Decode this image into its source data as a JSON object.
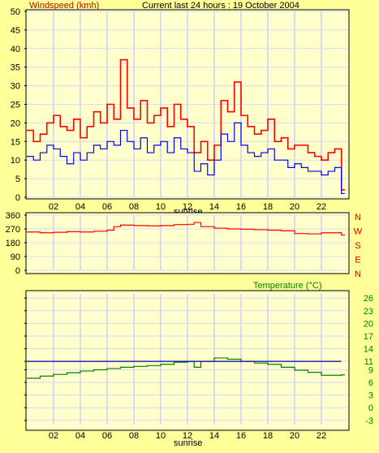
{
  "colors": {
    "background": "#ffff99",
    "plot_bg": "#ffffcc",
    "grid": "#d9d9f2",
    "gust": "#ff0000",
    "avg": "#0000ff",
    "direction": "#ff0000",
    "temperature": "#008000",
    "ref_line": "#0000aa",
    "text": "#000000",
    "direction_labels": "#cc0000",
    "temp_labels": "#008000"
  },
  "header": {
    "wind_title": "Windspeed (kmh)",
    "period_title": "Current last 24 hours : 19 October 2004"
  },
  "chart_data": [
    {
      "type": "line",
      "title": "Windspeed (kmh)",
      "x_ticks": [
        "02",
        "04",
        "06",
        "08",
        "10",
        "12",
        "14",
        "16",
        "18",
        "20",
        "22"
      ],
      "x_annotation": "sunrise",
      "y_ticks": [
        "0",
        "5",
        "10",
        "15",
        "20",
        "25",
        "30",
        "35",
        "40",
        "45",
        "50"
      ],
      "ylim": [
        0,
        50
      ],
      "xlim": [
        0,
        24
      ],
      "grid": true,
      "series": [
        {
          "color": "#ff0000",
          "x": [
            0,
            0.5,
            1,
            1.5,
            2,
            2.5,
            3,
            3.5,
            4,
            4.5,
            5,
            5.5,
            6,
            6.5,
            7,
            7.5,
            8,
            8.5,
            9,
            9.5,
            10,
            10.5,
            11,
            11.5,
            12,
            12.5,
            13,
            13.5,
            14,
            14.5,
            15,
            15.5,
            16,
            16.5,
            17,
            17.5,
            18,
            18.5,
            19,
            19.5,
            20,
            20.5,
            21,
            21.5,
            22,
            22.5,
            23,
            23.5
          ],
          "values": [
            18,
            15,
            17,
            20,
            22,
            19,
            18,
            21,
            16,
            19,
            23,
            20,
            25,
            21,
            37,
            24,
            21,
            26,
            20,
            22,
            24,
            19,
            25,
            21,
            19,
            12,
            15,
            10,
            14,
            26,
            23,
            31,
            22,
            19,
            17,
            18,
            21,
            15,
            16,
            13,
            14,
            14,
            12,
            11,
            10,
            12,
            13,
            2
          ]
        },
        {
          "color": "#0000ff",
          "x": [
            0,
            0.5,
            1,
            1.5,
            2,
            2.5,
            3,
            3.5,
            4,
            4.5,
            5,
            5.5,
            6,
            6.5,
            7,
            7.5,
            8,
            8.5,
            9,
            9.5,
            10,
            10.5,
            11,
            11.5,
            12,
            12.5,
            13,
            13.5,
            14,
            14.5,
            15,
            15.5,
            16,
            16.5,
            17,
            17.5,
            18,
            18.5,
            19,
            19.5,
            20,
            20.5,
            21,
            21.5,
            22,
            22.5,
            23,
            23.5
          ],
          "values": [
            11,
            10,
            12,
            14,
            13,
            11,
            9,
            12,
            10,
            12,
            14,
            13,
            15,
            14,
            18,
            15,
            13,
            16,
            12,
            14,
            15,
            12,
            16,
            13,
            12,
            7,
            9,
            6,
            10,
            17,
            15,
            20,
            14,
            12,
            11,
            12,
            13,
            10,
            10,
            8,
            9,
            8,
            7,
            7,
            6,
            7,
            8,
            1
          ]
        }
      ]
    },
    {
      "type": "line",
      "title": "",
      "x_ticks": [],
      "y_ticks": [
        "0",
        "90",
        "180",
        "270",
        "360"
      ],
      "right_labels": [
        "N",
        "W",
        "S",
        "E",
        "N"
      ],
      "ylim": [
        0,
        360
      ],
      "xlim": [
        0,
        24
      ],
      "grid": true,
      "series": [
        {
          "color": "#ff0000",
          "x": [
            0,
            1,
            2,
            3,
            4,
            5,
            6,
            6.5,
            7,
            8,
            9,
            10,
            11,
            12,
            12.5,
            13,
            14,
            15,
            16,
            17,
            18,
            19,
            20,
            21,
            22,
            23,
            23.5
          ],
          "values": [
            250,
            245,
            248,
            252,
            250,
            255,
            262,
            285,
            295,
            292,
            290,
            292,
            298,
            300,
            312,
            285,
            275,
            270,
            268,
            265,
            262,
            258,
            240,
            238,
            245,
            245,
            230
          ]
        }
      ]
    },
    {
      "type": "line",
      "title": "Temperature (°C)",
      "x_ticks": [
        "02",
        "04",
        "06",
        "08",
        "10",
        "12",
        "14",
        "16",
        "18",
        "20",
        "22"
      ],
      "x_annotation": "sunrise",
      "y_ticks": [
        "-3",
        "0",
        "3",
        "6",
        "9",
        "11",
        "14",
        "17",
        "20",
        "23",
        "26"
      ],
      "ylim": [
        -4,
        27
      ],
      "xlim": [
        0,
        24
      ],
      "grid": true,
      "series": [
        {
          "color": "#008000",
          "x": [
            0,
            1,
            2,
            3,
            4,
            5,
            6,
            7,
            8,
            9,
            10,
            11,
            12,
            12.5,
            13,
            14,
            15,
            16,
            17,
            18,
            19,
            20,
            21,
            22,
            23,
            23.5
          ],
          "values": [
            7,
            7.5,
            7.9,
            8.3,
            8.7,
            9.0,
            9.3,
            9.6,
            9.8,
            10.0,
            10.3,
            10.8,
            11.0,
            9.6,
            11.0,
            11.8,
            11.5,
            11.0,
            10.6,
            10.3,
            9.6,
            8.9,
            8.4,
            7.7,
            7.7,
            7.8
          ]
        },
        {
          "color": "#0000aa",
          "x": [
            0,
            23.5
          ],
          "values": [
            11,
            11
          ]
        }
      ]
    }
  ]
}
